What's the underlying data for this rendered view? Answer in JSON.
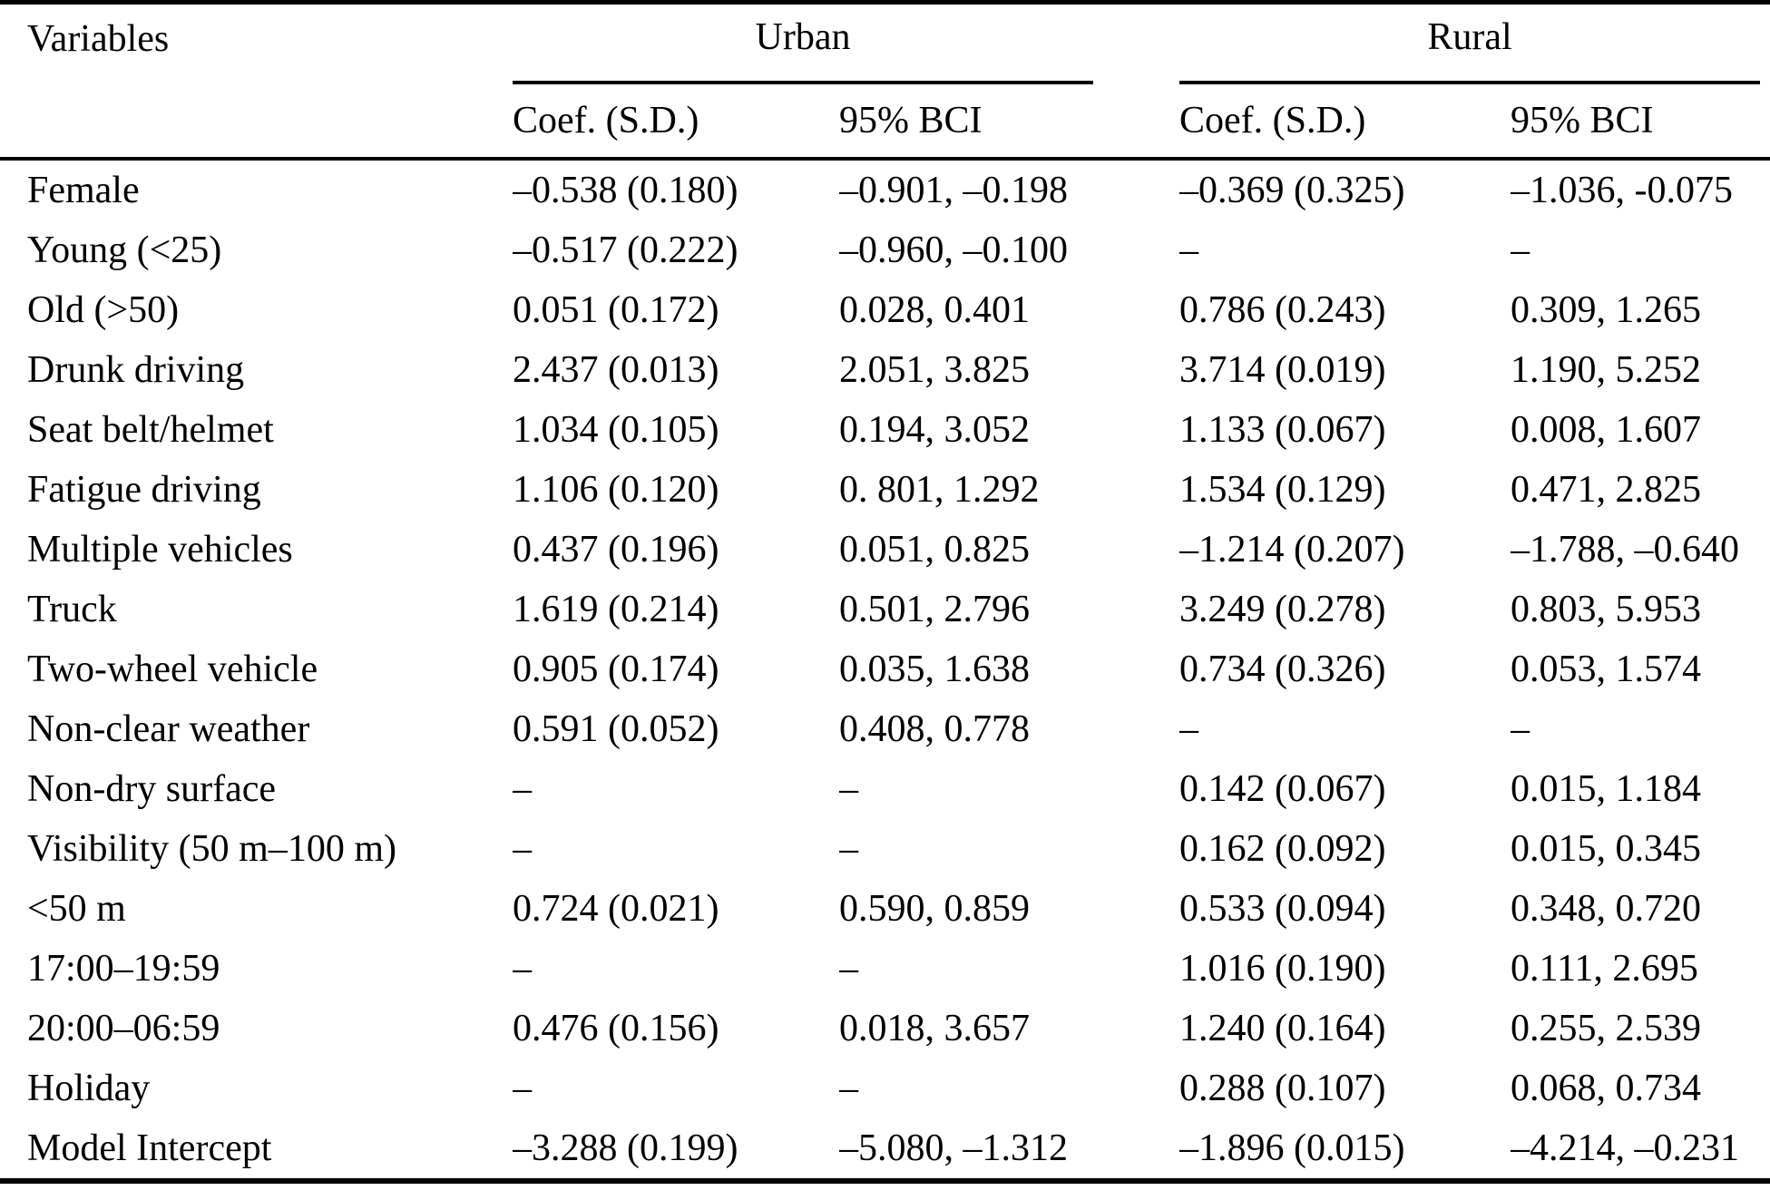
{
  "header": {
    "variables": "Variables",
    "groups": [
      {
        "label": "Urban",
        "sub": [
          "Coef. (S.D.)",
          "95% BCI"
        ]
      },
      {
        "label": "Rural",
        "sub": [
          "Coef. (S.D.)",
          "95% BCI"
        ]
      }
    ]
  },
  "rows": [
    {
      "variable": "Female",
      "urban_coef": "–0.538 (0.180)",
      "urban_bci": "–0.901, –0.198",
      "rural_coef": "–0.369 (0.325)",
      "rural_bci": "–1.036, -0.075"
    },
    {
      "variable": "Young (<25)",
      "urban_coef": "–0.517 (0.222)",
      "urban_bci": "–0.960, –0.100",
      "rural_coef": "–",
      "rural_bci": "–"
    },
    {
      "variable": "Old (>50)",
      "urban_coef": "0.051 (0.172)",
      "urban_bci": "0.028, 0.401",
      "rural_coef": "0.786 (0.243)",
      "rural_bci": "0.309, 1.265"
    },
    {
      "variable": "Drunk driving",
      "urban_coef": "2.437 (0.013)",
      "urban_bci": "2.051, 3.825",
      "rural_coef": "3.714 (0.019)",
      "rural_bci": "1.190, 5.252"
    },
    {
      "variable": "Seat belt/helmet",
      "urban_coef": "1.034 (0.105)",
      "urban_bci": "0.194, 3.052",
      "rural_coef": "1.133 (0.067)",
      "rural_bci": "0.008, 1.607"
    },
    {
      "variable": "Fatigue driving",
      "urban_coef": "1.106 (0.120)",
      "urban_bci": "0. 801, 1.292",
      "rural_coef": "1.534 (0.129)",
      "rural_bci": "0.471, 2.825"
    },
    {
      "variable": "Multiple vehicles",
      "urban_coef": "0.437 (0.196)",
      "urban_bci": "0.051, 0.825",
      "rural_coef": "–1.214 (0.207)",
      "rural_bci": "–1.788, –0.640"
    },
    {
      "variable": "Truck",
      "urban_coef": "1.619 (0.214)",
      "urban_bci": "0.501, 2.796",
      "rural_coef": "3.249 (0.278)",
      "rural_bci": "0.803, 5.953"
    },
    {
      "variable": "Two-wheel vehicle",
      "urban_coef": "0.905 (0.174)",
      "urban_bci": "0.035, 1.638",
      "rural_coef": "0.734 (0.326)",
      "rural_bci": "0.053, 1.574"
    },
    {
      "variable": "Non-clear weather",
      "urban_coef": "0.591 (0.052)",
      "urban_bci": "0.408, 0.778",
      "rural_coef": "–",
      "rural_bci": "–"
    },
    {
      "variable": "Non-dry surface",
      "urban_coef": "–",
      "urban_bci": "–",
      "rural_coef": "0.142 (0.067)",
      "rural_bci": "0.015, 1.184"
    },
    {
      "variable": "Visibility (50 m–100 m)",
      "urban_coef": "–",
      "urban_bci": "–",
      "rural_coef": "0.162 (0.092)",
      "rural_bci": "0.015, 0.345"
    },
    {
      "variable": "<50 m",
      "urban_coef": "0.724 (0.021)",
      "urban_bci": "0.590, 0.859",
      "rural_coef": "0.533 (0.094)",
      "rural_bci": "0.348, 0.720"
    },
    {
      "variable": "17:00–19:59",
      "urban_coef": "–",
      "urban_bci": "–",
      "rural_coef": "1.016 (0.190)",
      "rural_bci": "0.111, 2.695"
    },
    {
      "variable": "20:00–06:59",
      "urban_coef": "0.476 (0.156)",
      "urban_bci": "0.018, 3.657",
      "rural_coef": "1.240 (0.164)",
      "rural_bci": "0.255, 2.539"
    },
    {
      "variable": "Holiday",
      "urban_coef": "–",
      "urban_bci": "–",
      "rural_coef": "0.288 (0.107)",
      "rural_bci": "0.068, 0.734"
    },
    {
      "variable": "Model Intercept",
      "urban_coef": "–3.288 (0.199)",
      "urban_bci": "–5.080, –1.312",
      "rural_coef": "–1.896 (0.015)",
      "rural_bci": "–4.214, –0.231"
    }
  ]
}
